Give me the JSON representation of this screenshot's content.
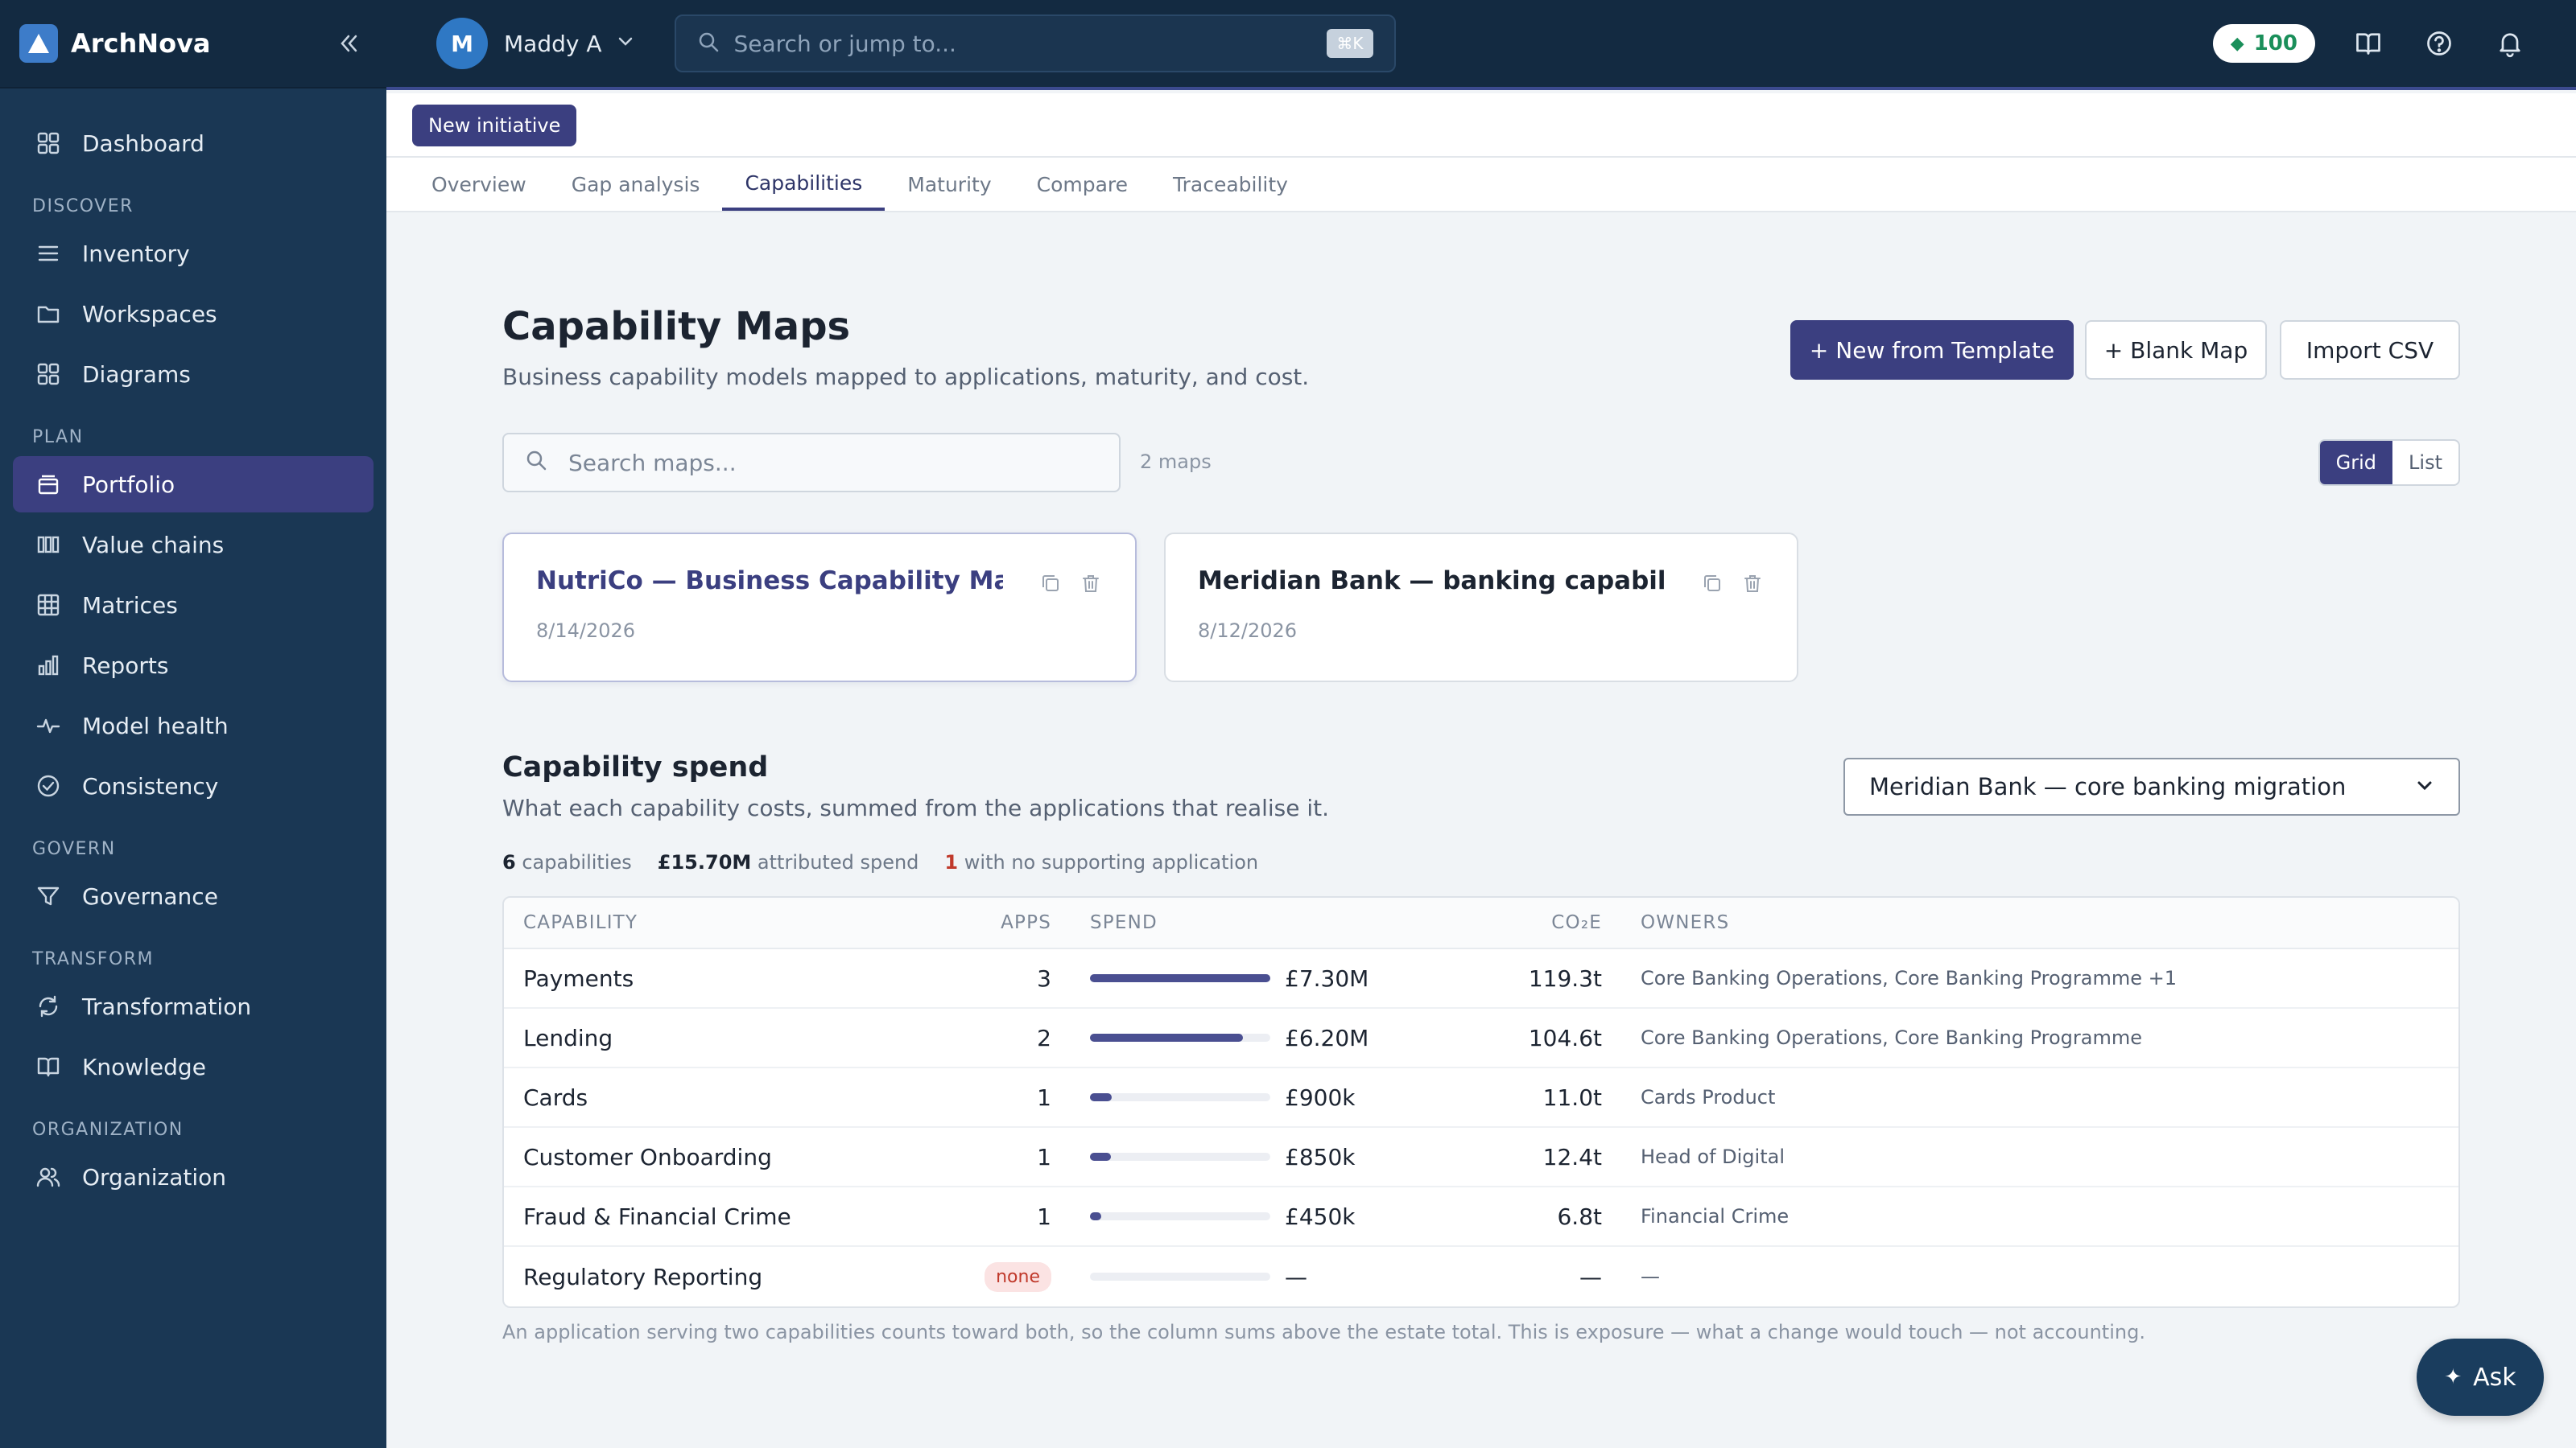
{
  "app": {
    "name": "ArchNova"
  },
  "topbar": {
    "user_initial": "M",
    "user_name": "Maddy A",
    "search_placeholder": "Search or jump to...",
    "shortcut": "⌘K",
    "credits": "100"
  },
  "sidebar": {
    "dashboard": "Dashboard",
    "sections": {
      "discover": "DISCOVER",
      "plan": "PLAN",
      "govern": "GOVERN",
      "transform": "TRANSFORM",
      "organization": "ORGANIZATION"
    },
    "items": {
      "inventory": "Inventory",
      "workspaces": "Workspaces",
      "diagrams": "Diagrams",
      "portfolio": "Portfolio",
      "value_chains": "Value chains",
      "matrices": "Matrices",
      "reports": "Reports",
      "model_health": "Model health",
      "consistency": "Consistency",
      "governance": "Governance",
      "transformation": "Transformation",
      "knowledge": "Knowledge",
      "organization": "Organization"
    }
  },
  "subheader": {
    "new_initiative": "New initiative"
  },
  "tabs": [
    "Overview",
    "Gap analysis",
    "Capabilities",
    "Maturity",
    "Compare",
    "Traceability"
  ],
  "page": {
    "title": "Capability Maps",
    "subtitle": "Business capability models mapped to applications, maturity, and cost.",
    "btn_template": "+ New from Template",
    "btn_blank": "+ Blank Map",
    "btn_import": "Import CSV",
    "search_placeholder": "Search maps...",
    "maps_count": "2 maps",
    "view_grid": "Grid",
    "view_list": "List"
  },
  "maps": [
    {
      "title": "NutriCo — Business Capability Map",
      "date": "8/14/2026"
    },
    {
      "title": "Meridian Bank — banking capability ...",
      "date": "8/12/2026"
    }
  ],
  "spend": {
    "title": "Capability spend",
    "subtitle": "What each capability costs, summed from the applications that realise it.",
    "selected_initiative": "Meridian Bank — core banking migration",
    "stats": {
      "capabilities_count": "6",
      "capabilities_label": "capabilities",
      "spend_value": "£15.70M",
      "spend_label": "attributed spend",
      "unsupported_count": "1",
      "unsupported_label": "with no supporting application"
    },
    "columns": {
      "capability": "CAPABILITY",
      "apps": "APPS",
      "spend": "SPEND",
      "co2": "CO₂E",
      "owners": "OWNERS"
    },
    "rows": [
      {
        "capability": "Payments",
        "apps": "3",
        "spend": "£7.30M",
        "spend_fraction": 1.0,
        "co2": "119.3t",
        "owners": "Core Banking Operations, Core Banking Programme +1"
      },
      {
        "capability": "Lending",
        "apps": "2",
        "spend": "£6.20M",
        "spend_fraction": 0.85,
        "co2": "104.6t",
        "owners": "Core Banking Operations, Core Banking Programme"
      },
      {
        "capability": "Cards",
        "apps": "1",
        "spend": "£900k",
        "spend_fraction": 0.12,
        "co2": "11.0t",
        "owners": "Cards Product"
      },
      {
        "capability": "Customer Onboarding",
        "apps": "1",
        "spend": "£850k",
        "spend_fraction": 0.116,
        "co2": "12.4t",
        "owners": "Head of Digital"
      },
      {
        "capability": "Fraud & Financial Crime",
        "apps": "1",
        "spend": "£450k",
        "spend_fraction": 0.062,
        "co2": "6.8t",
        "owners": "Financial Crime"
      },
      {
        "capability": "Regulatory Reporting",
        "apps": "none",
        "spend": "—",
        "spend_fraction": 0,
        "co2": "—",
        "owners": "—"
      }
    ],
    "footnote": "An application serving two capabilities counts toward both, so the column sums above the estate total. This is exposure — what a change would touch — not accounting."
  },
  "ask": {
    "label": "Ask"
  }
}
